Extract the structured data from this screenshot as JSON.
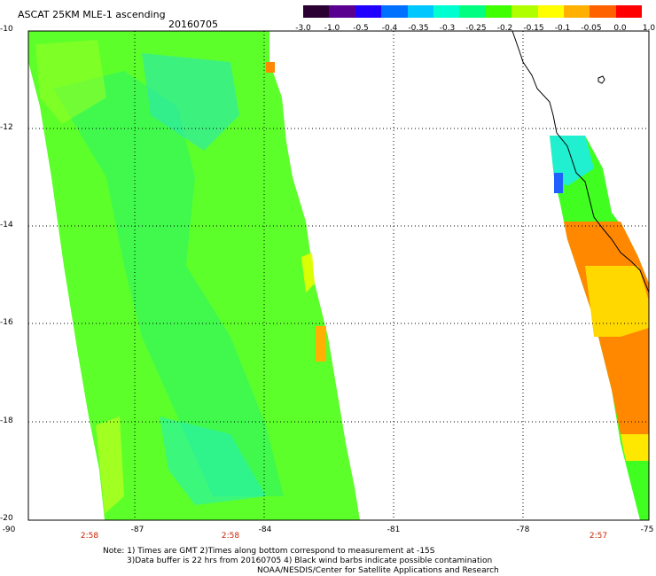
{
  "header": {
    "title": "ASCAT 25KM MLE-1 ascending",
    "date": "20160705"
  },
  "colorbar": {
    "labels": [
      "-3.0",
      "-1.0",
      "-0.5",
      "-0.4",
      "-0.35",
      "-0.3",
      "-0.25",
      "-0.2",
      "-0.15",
      "-0.1",
      "-0.05",
      "0.0",
      "1.0"
    ],
    "colors": [
      "#2b0033",
      "#5a0090",
      "#2000ff",
      "#0070ff",
      "#00c8ff",
      "#00ffd0",
      "#00ff80",
      "#40ff00",
      "#b0ff00",
      "#ffff00",
      "#ffb000",
      "#ff6000",
      "#ff0000"
    ]
  },
  "axes": {
    "y_labels": [
      "-10",
      "-12",
      "-14",
      "-16",
      "-18",
      "-20"
    ],
    "x_labels": [
      "-90",
      "-87",
      "-84",
      "-81",
      "-78",
      "-75"
    ],
    "time_labels": [
      "2:58",
      "2:58",
      "2:57"
    ]
  },
  "notes": {
    "line1": "Note: 1) Times are GMT 2)Times along bottom correspond to measurement at -15S",
    "line2": "3)Data buffer is 22 hrs from 20160705 4) Black wind barbs indicate possible contamination",
    "line3": "NOAA/NESDIS/Center for Satellite Applications and Research"
  },
  "map": {
    "lon_range": [
      -90,
      -75
    ],
    "lat_range": [
      -20,
      -10
    ],
    "swaths": [
      {
        "name": "west-swath",
        "dominant_value_range": "-0.25 to -0.15"
      },
      {
        "name": "east-swath",
        "dominant_value_range": "-0.2 to 0.0"
      }
    ]
  }
}
